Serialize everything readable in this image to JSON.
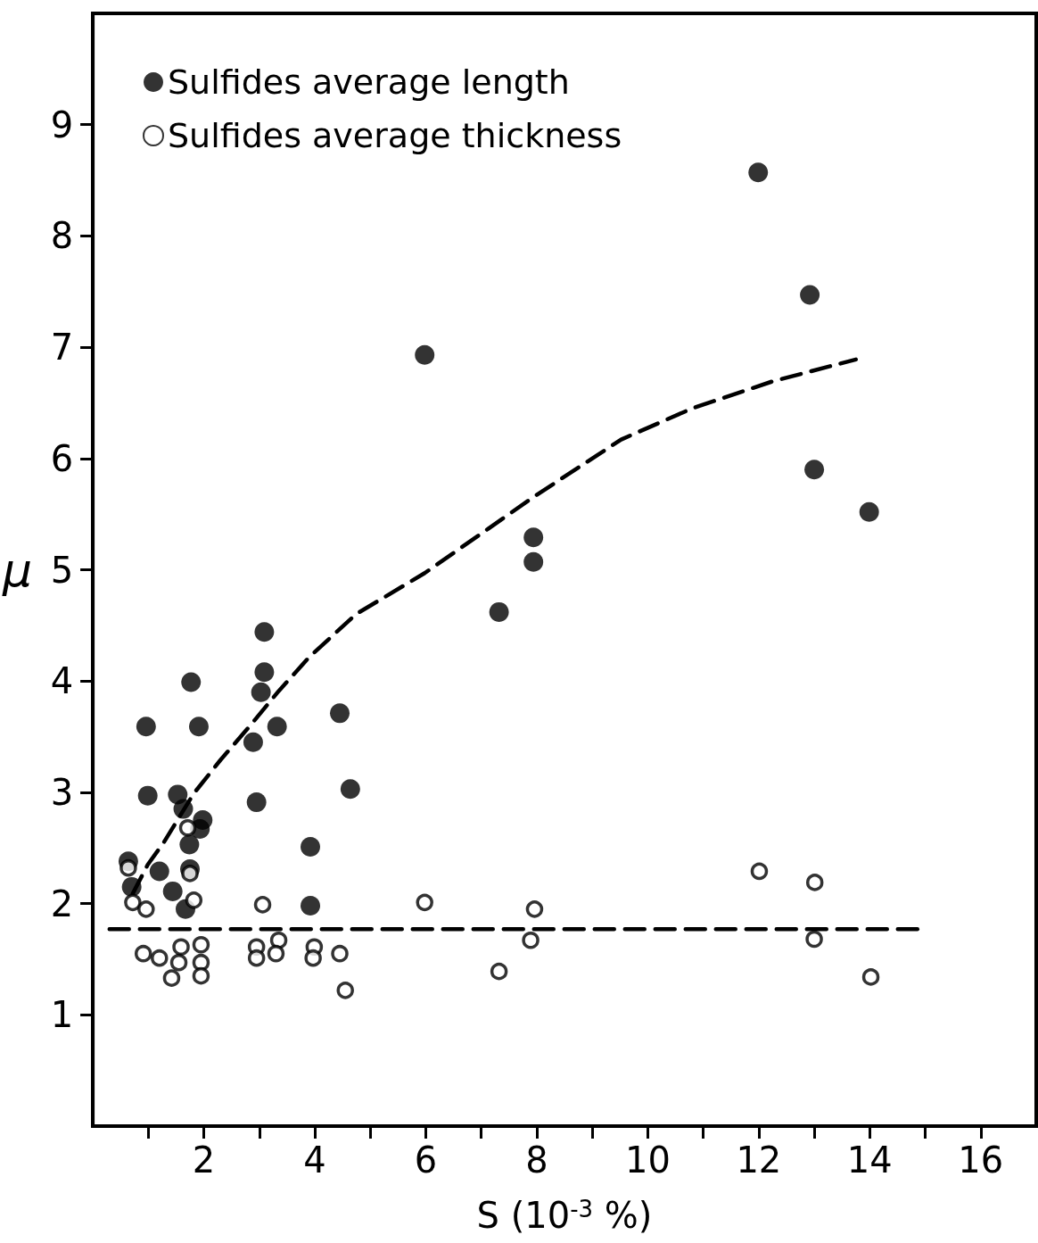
{
  "chart_data": {
    "type": "scatter",
    "xlabel": "S (10$^{-3}$ %)",
    "ylabel": "μ",
    "xlim": [
      0,
      17
    ],
    "ylim": [
      0,
      10
    ],
    "xticks": [
      {
        "value": 1,
        "label": null
      },
      2,
      {
        "value": 3,
        "label": null
      },
      4,
      {
        "value": 5,
        "label": null
      },
      6,
      {
        "value": 7,
        "label": null
      },
      8,
      {
        "value": 9,
        "label": null
      },
      10,
      {
        "value": 11,
        "label": null
      },
      12,
      {
        "value": 13,
        "label": null
      },
      14,
      {
        "value": 15,
        "label": null
      },
      16
    ],
    "yticks": [
      1,
      2,
      3,
      4,
      5,
      6,
      7,
      8,
      9
    ],
    "grid": false,
    "legend": "top left",
    "series": [
      {
        "name": "Sulfides average length",
        "marker": "circle",
        "color": "#000000",
        "x": [
          0.96,
          0.99,
          0.64,
          0.7,
          1.2,
          1.53,
          1.63,
          1.44,
          1.77,
          1.91,
          1.98,
          1.93,
          1.74,
          1.75,
          1.67,
          3.09,
          3.09,
          3.03,
          3.32,
          2.89,
          2.95,
          4.45,
          4.64,
          3.92,
          3.92,
          5.98,
          7.32,
          7.94,
          7.94,
          11.99,
          12.92,
          13.0,
          13.99
        ],
        "values": [
          3.59,
          2.97,
          2.38,
          2.15,
          2.29,
          2.98,
          2.85,
          2.11,
          3.99,
          3.59,
          2.75,
          2.67,
          2.53,
          2.31,
          1.95,
          4.44,
          4.08,
          3.9,
          3.59,
          3.45,
          2.91,
          3.71,
          3.03,
          2.51,
          1.98,
          6.93,
          4.62,
          5.29,
          5.07,
          8.57,
          7.47,
          5.9,
          5.52
        ]
      },
      {
        "name": "Sulfides average thickness",
        "marker": "circle",
        "color": "#ffffff",
        "x": [
          0.64,
          0.72,
          0.96,
          0.91,
          1.2,
          1.59,
          1.55,
          1.42,
          1.71,
          1.75,
          1.82,
          1.95,
          1.95,
          1.95,
          2.95,
          3.35,
          2.95,
          3.3,
          3.99,
          3.97,
          4.45,
          4.55,
          3.06,
          5.98,
          7.32,
          7.96,
          7.89,
          12.01,
          13.01,
          13.0,
          14.02
        ],
        "values": [
          2.32,
          2.01,
          1.95,
          1.55,
          1.51,
          1.61,
          1.47,
          1.33,
          2.68,
          2.27,
          2.03,
          1.63,
          1.47,
          1.35,
          1.61,
          1.67,
          1.51,
          1.55,
          1.61,
          1.51,
          1.55,
          1.22,
          1.99,
          2.01,
          1.39,
          1.95,
          1.67,
          2.29,
          2.19,
          1.68,
          1.34
        ]
      },
      {
        "type": "line",
        "line_style": "dashed",
        "marker": "none",
        "color": "#000000",
        "x": [
          0.72,
          0.99,
          1.28,
          1.82,
          2.3,
          2.82,
          3.35,
          3.89,
          4.74,
          5.98,
          7.13,
          7.93,
          9.52,
          10.8,
          12.23,
          13.75
        ],
        "values": [
          2.09,
          2.35,
          2.55,
          2.99,
          3.29,
          3.59,
          3.91,
          4.21,
          4.6,
          4.97,
          5.37,
          5.65,
          6.17,
          6.45,
          6.69,
          6.89
        ]
      },
      {
        "type": "line",
        "line_style": "dashed",
        "marker": "none",
        "color": "#000000",
        "x": [
          0.3,
          15.0
        ],
        "values": [
          1.77,
          1.77
        ]
      }
    ]
  }
}
